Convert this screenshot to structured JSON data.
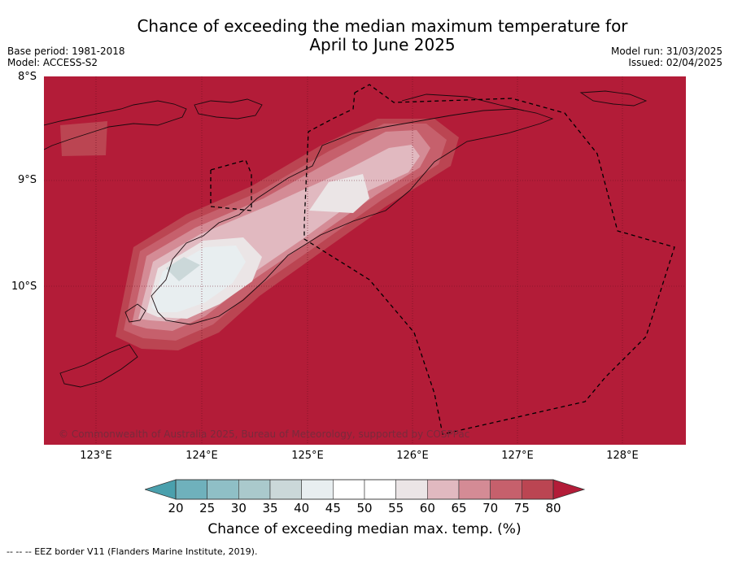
{
  "title": {
    "line1": "Chance of exceeding the median maximum temperature for",
    "line2": "April to June 2025"
  },
  "meta": {
    "base_period": "Base period: 1981-2018",
    "model": "Model: ACCESS-S2",
    "model_run": "Model run: 31/03/2025",
    "issued": "Issued: 02/04/2025"
  },
  "map": {
    "lat_labels": [
      "8°S",
      "9°S",
      "10°S"
    ],
    "lon_labels": [
      "123°E",
      "124°E",
      "125°E",
      "126°E",
      "127°E",
      "128°E"
    ],
    "background_color": "#b31c38",
    "credit": "© Commonwealth of Australia 2025, Bureau of Meteorology, supported by COSPPac"
  },
  "colorbar": {
    "ticks": [
      "20",
      "25",
      "30",
      "35",
      "40",
      "45",
      "50",
      "55",
      "60",
      "65",
      "70",
      "75",
      "80"
    ],
    "colors": [
      "#4aa0ad",
      "#6fb1bc",
      "#8fbfc6",
      "#aac9cc",
      "#cbd8d9",
      "#e8eef0",
      "#ffffff",
      "#ffffff",
      "#ebe5e6",
      "#e1b9c0",
      "#d48b95",
      "#c6606c",
      "#bb4552",
      "#b31c38"
    ],
    "label": "Chance of exceeding median max. temp. (%)"
  },
  "legend_note": "--  --  -- EEZ border V11 (Flanders Marine Institute, 2019)."
}
